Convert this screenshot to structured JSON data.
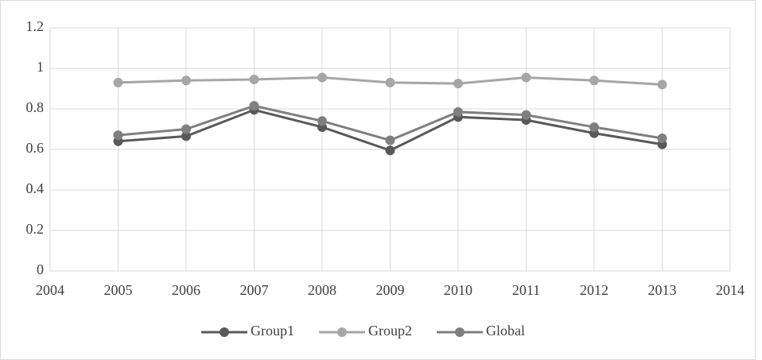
{
  "chart_data": {
    "type": "line",
    "x": [
      2005,
      2006,
      2007,
      2008,
      2009,
      2010,
      2011,
      2012,
      2013
    ],
    "series": [
      {
        "name": "Group1",
        "color": "#595959",
        "values": [
          0.64,
          0.665,
          0.795,
          0.71,
          0.595,
          0.76,
          0.745,
          0.68,
          0.625
        ]
      },
      {
        "name": "Group2",
        "color": "#a6a6a6",
        "values": [
          0.93,
          0.94,
          0.945,
          0.955,
          0.93,
          0.925,
          0.955,
          0.94,
          0.92
        ]
      },
      {
        "name": "Global",
        "color": "#7f7f7f",
        "values": [
          0.67,
          0.7,
          0.815,
          0.74,
          0.645,
          0.785,
          0.77,
          0.71,
          0.655
        ]
      }
    ],
    "xlim": [
      2004,
      2014
    ],
    "xticks": [
      2004,
      2005,
      2006,
      2007,
      2008,
      2009,
      2010,
      2011,
      2012,
      2013,
      2014
    ],
    "ylim": [
      0,
      1.2
    ],
    "yticks": [
      0,
      0.2,
      0.4,
      0.6,
      0.8,
      1,
      1.2
    ],
    "grid": true,
    "legend": "bottom"
  }
}
